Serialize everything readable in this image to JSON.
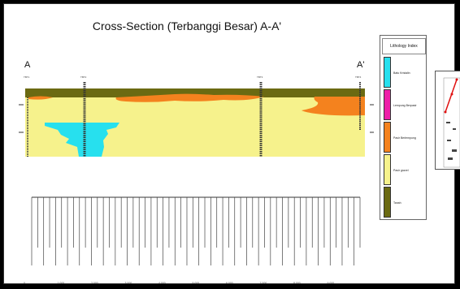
{
  "title": "Cross-Section (Terbanggi Besar) A-A'",
  "section_start": "A",
  "section_end": "A'",
  "wells": [
    "TBT1",
    "TBT2",
    "TBT3",
    "TBT4"
  ],
  "legend": {
    "title": "Lithology Index",
    "items": [
      {
        "label": "Batu Kristalin",
        "color": "#27e0ee"
      },
      {
        "label": "Lempung Berpasir",
        "color": "#ee1fa8"
      },
      {
        "label": "Pasir Berlempung",
        "color": "#f4821e"
      },
      {
        "label": "Pasir gravel",
        "color": "#f6f28c"
      },
      {
        "label": "Tanah",
        "color": "#6b6a12"
      }
    ]
  },
  "x_ticks": [
    "0",
    "1.000",
    "2.000",
    "3.000",
    "4.000",
    "5.000",
    "6.000",
    "7.000",
    "8.000",
    "9.000"
  ]
}
